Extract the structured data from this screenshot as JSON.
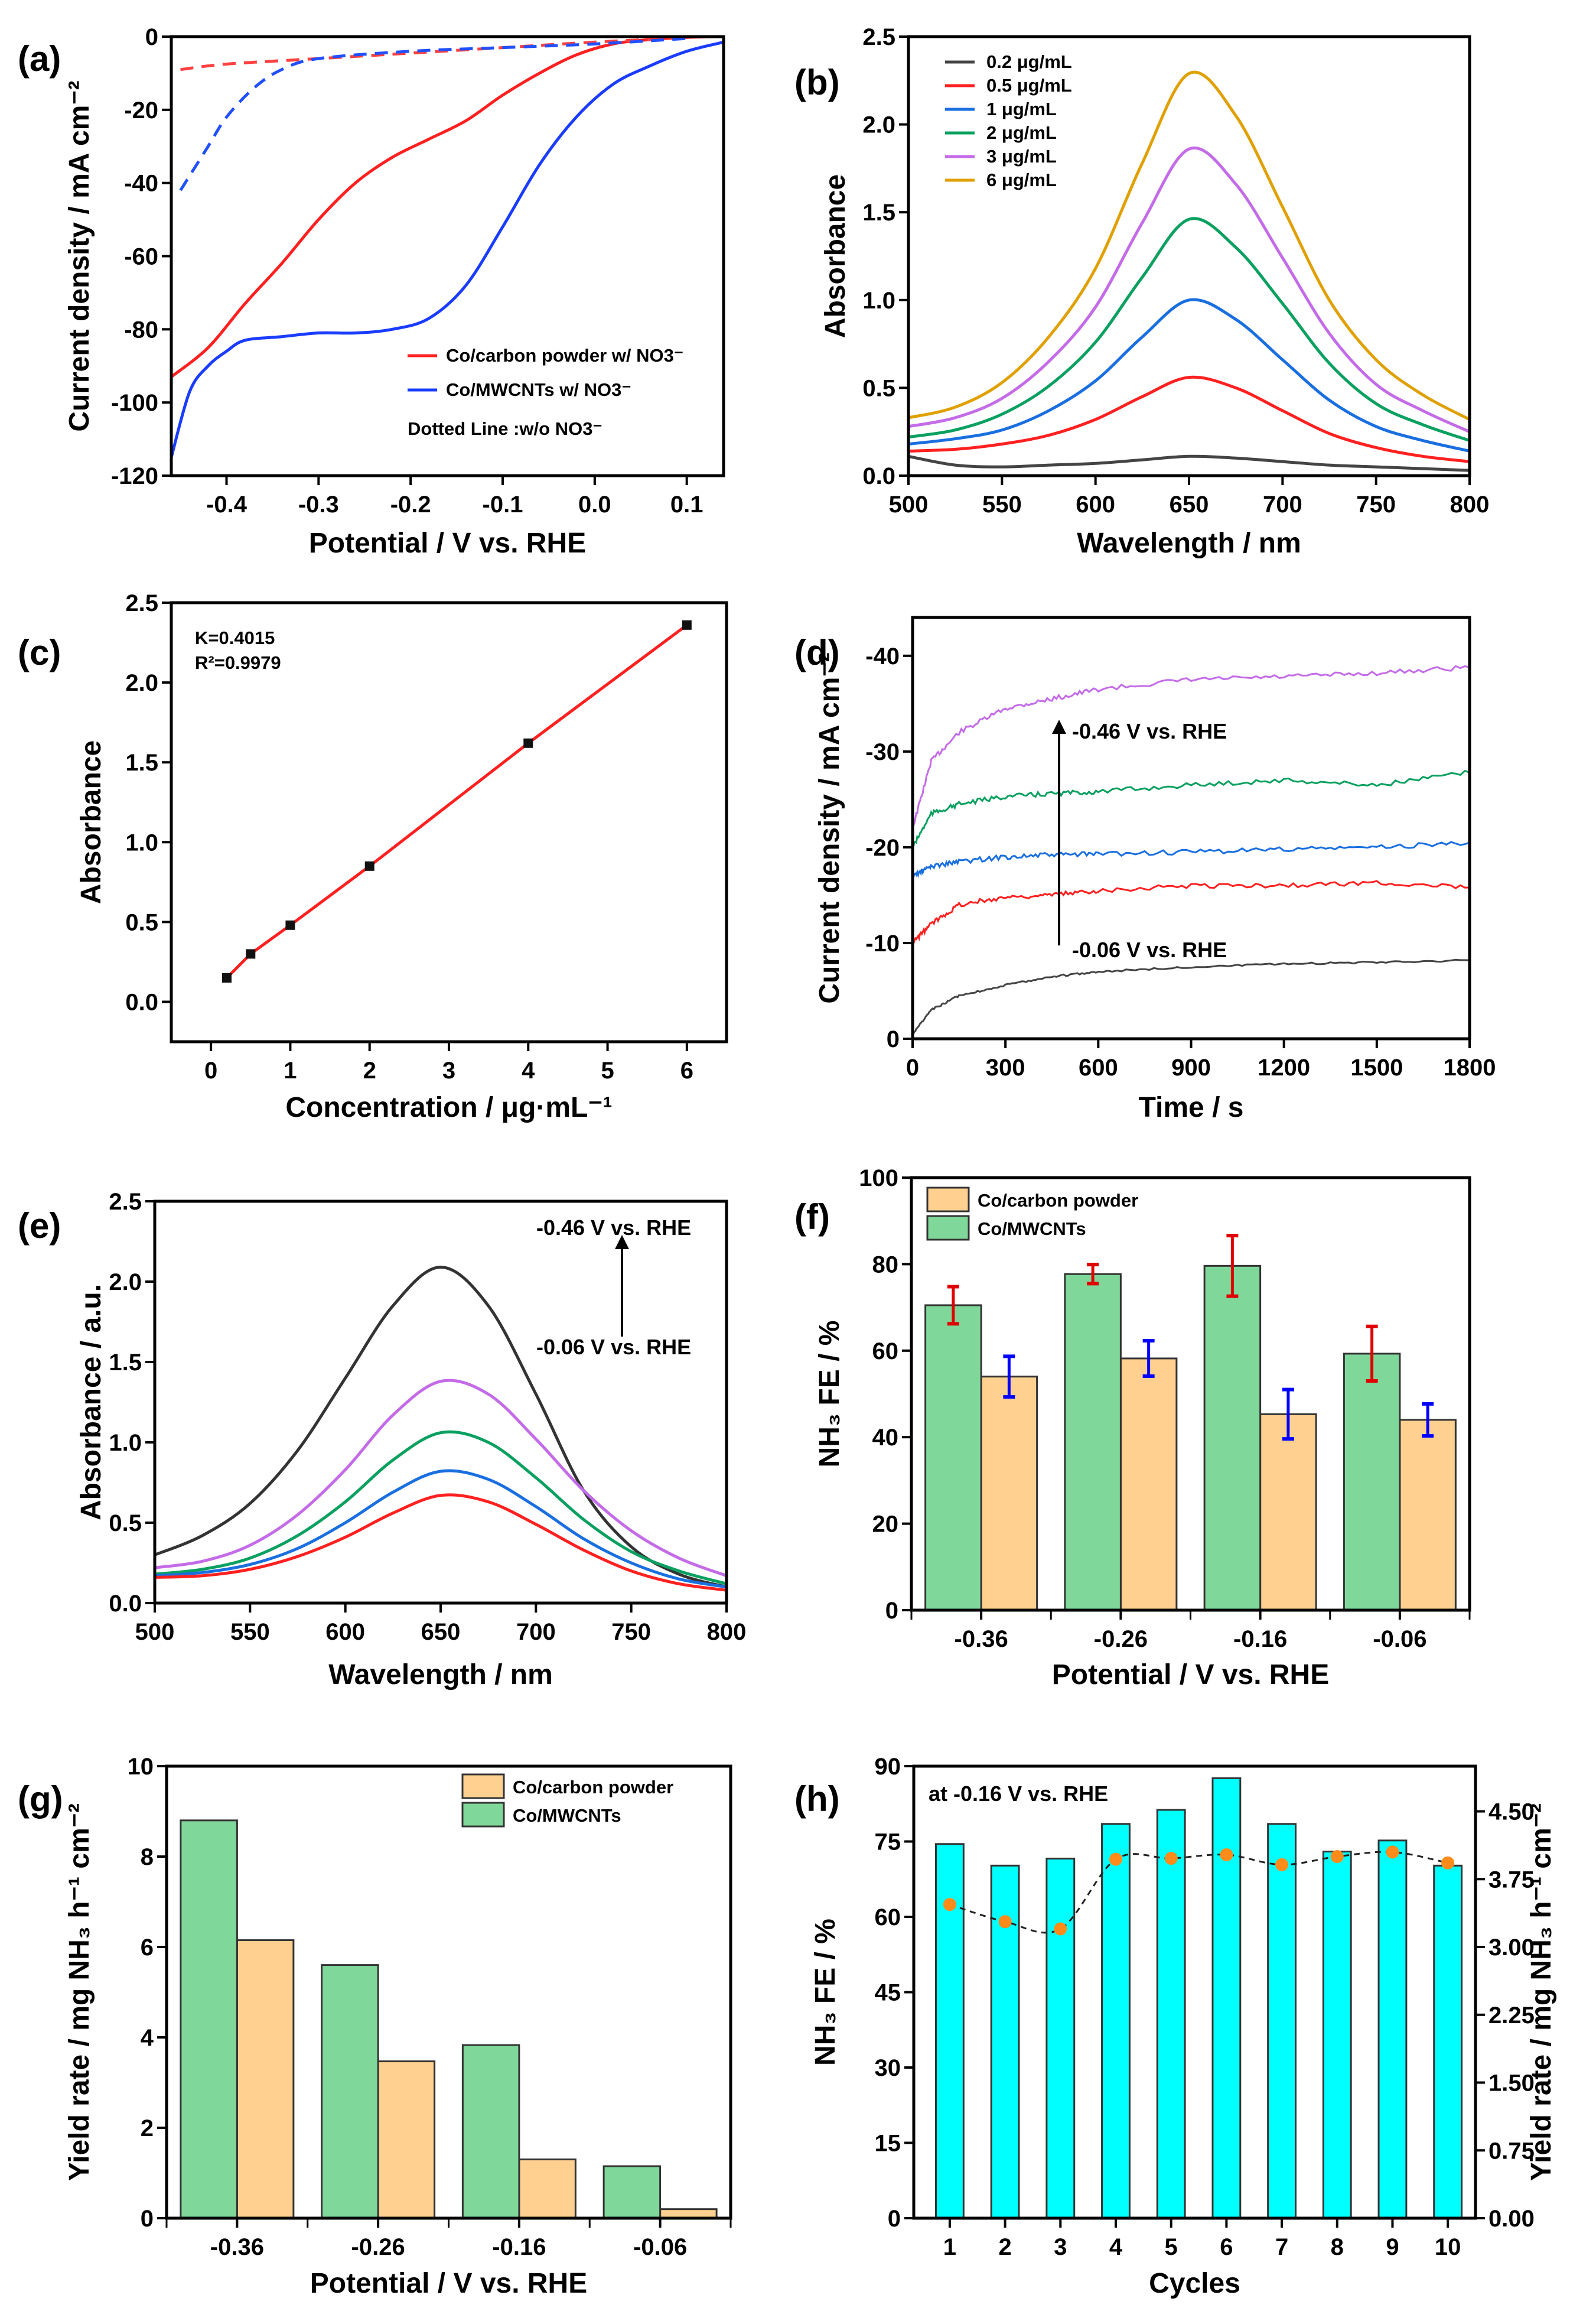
{
  "chart_data": [
    {
      "panel_label": "(a)",
      "type": "line",
      "xlabel": "Potential / V vs. RHE",
      "ylabel": "Current density / mA cm⁻²",
      "xlim": [
        -0.46,
        0.14
      ],
      "ylim": [
        -120,
        0
      ],
      "x_ticks": [
        "-0.4",
        "-0.3",
        "-0.2",
        "-0.1",
        "0.0",
        "0.1"
      ],
      "y_ticks": [
        "-120",
        "-100",
        "-80",
        "-60",
        "-40",
        "-20",
        "0"
      ],
      "series": [
        {
          "name": "Co/carbon powder w/ NO3⁻",
          "color": "#ff2020",
          "dashed": false,
          "points": [
            [
              -0.46,
              -93
            ],
            [
              -0.42,
              -85
            ],
            [
              -0.38,
              -73
            ],
            [
              -0.34,
              -62
            ],
            [
              -0.3,
              -50
            ],
            [
              -0.26,
              -40
            ],
            [
              -0.22,
              -33
            ],
            [
              -0.18,
              -28
            ],
            [
              -0.14,
              -23
            ],
            [
              -0.1,
              -16
            ],
            [
              -0.06,
              -10
            ],
            [
              -0.02,
              -5
            ],
            [
              0.02,
              -2
            ],
            [
              0.06,
              -0.8
            ],
            [
              0.1,
              -0.2
            ],
            [
              0.14,
              0
            ]
          ]
        },
        {
          "name": "Co/MWCNTs w/ NO3⁻",
          "color": "#1a3cff",
          "dashed": false,
          "points": [
            [
              -0.46,
              -115
            ],
            [
              -0.44,
              -97
            ],
            [
              -0.42,
              -90
            ],
            [
              -0.4,
              -86
            ],
            [
              -0.38,
              -83
            ],
            [
              -0.34,
              -82
            ],
            [
              -0.3,
              -81
            ],
            [
              -0.26,
              -81
            ],
            [
              -0.22,
              -80
            ],
            [
              -0.18,
              -77
            ],
            [
              -0.14,
              -68
            ],
            [
              -0.1,
              -52
            ],
            [
              -0.06,
              -35
            ],
            [
              -0.02,
              -22
            ],
            [
              0.02,
              -13
            ],
            [
              0.06,
              -8
            ],
            [
              0.1,
              -4
            ],
            [
              0.14,
              -1.5
            ]
          ]
        },
        {
          "color": "#ff4040",
          "dashed": true,
          "points": [
            [
              -0.45,
              -9
            ],
            [
              -0.4,
              -7.5
            ],
            [
              -0.3,
              -6
            ],
            [
              -0.2,
              -4.5
            ],
            [
              -0.1,
              -3
            ],
            [
              0,
              -1.5
            ],
            [
              0.1,
              -0.3
            ]
          ]
        },
        {
          "color": "#2050ff",
          "dashed": true,
          "points": [
            [
              -0.45,
              -42
            ],
            [
              -0.42,
              -30
            ],
            [
              -0.4,
              -22
            ],
            [
              -0.37,
              -14
            ],
            [
              -0.34,
              -9
            ],
            [
              -0.3,
              -6
            ],
            [
              -0.2,
              -4
            ],
            [
              -0.1,
              -3
            ],
            [
              0,
              -2
            ],
            [
              0.1,
              -0.5
            ]
          ]
        }
      ],
      "legend_note": "Dotted Line :w/o NO3⁻",
      "legend_position": "bottom-right"
    },
    {
      "panel_label": "(b)",
      "type": "line",
      "xlabel": "Wavelength / nm",
      "ylabel": "Absorbance",
      "xlim": [
        500,
        800
      ],
      "ylim": [
        0,
        2.5
      ],
      "x_ticks": [
        "500",
        "550",
        "600",
        "650",
        "700",
        "750",
        "800"
      ],
      "y_ticks": [
        "0.0",
        "0.5",
        "1.0",
        "1.5",
        "2.0",
        "2.5"
      ],
      "x": [
        500,
        525,
        550,
        575,
        600,
        625,
        650,
        675,
        700,
        725,
        750,
        775,
        800
      ],
      "series": [
        {
          "name": "0.2 μg/mL",
          "color": "#444444",
          "values": [
            0.11,
            0.06,
            0.05,
            0.06,
            0.07,
            0.09,
            0.11,
            0.1,
            0.08,
            0.06,
            0.05,
            0.04,
            0.03
          ]
        },
        {
          "name": "0.5 μg/mL",
          "color": "#ff2020",
          "values": [
            0.14,
            0.15,
            0.18,
            0.23,
            0.32,
            0.45,
            0.56,
            0.5,
            0.37,
            0.24,
            0.16,
            0.11,
            0.08
          ]
        },
        {
          "name": "1 μg/mL",
          "color": "#1a6fe0",
          "values": [
            0.18,
            0.21,
            0.26,
            0.37,
            0.54,
            0.79,
            1.0,
            0.89,
            0.66,
            0.43,
            0.28,
            0.2,
            0.14
          ]
        },
        {
          "name": "2 μg/mL",
          "color": "#0aa060",
          "values": [
            0.22,
            0.26,
            0.35,
            0.51,
            0.76,
            1.13,
            1.46,
            1.3,
            0.98,
            0.64,
            0.41,
            0.29,
            0.2
          ]
        },
        {
          "name": "3 μg/mL",
          "color": "#c46be8",
          "values": [
            0.28,
            0.33,
            0.44,
            0.65,
            0.96,
            1.44,
            1.86,
            1.66,
            1.24,
            0.81,
            0.52,
            0.37,
            0.25
          ]
        },
        {
          "name": "6 μg/mL",
          "color": "#e0a000",
          "values": [
            0.33,
            0.39,
            0.53,
            0.79,
            1.18,
            1.78,
            2.29,
            2.05,
            1.53,
            1.0,
            0.66,
            0.46,
            0.32
          ]
        }
      ],
      "legend_position": "top-left"
    },
    {
      "panel_label": "(c)",
      "type": "scatter",
      "xlabel": "Concentration / μg·mL⁻¹",
      "ylabel": "Absorbance",
      "xlim": [
        -0.5,
        6.5
      ],
      "ylim": [
        -0.25,
        2.5
      ],
      "x_ticks": [
        "0",
        "1",
        "2",
        "3",
        "4",
        "5",
        "6"
      ],
      "y_ticks": [
        "0.0",
        "0.5",
        "1.0",
        "1.5",
        "2.0",
        "2.5"
      ],
      "points": [
        [
          0.2,
          0.15
        ],
        [
          0.5,
          0.3
        ],
        [
          1,
          0.48
        ],
        [
          2,
          0.85
        ],
        [
          4,
          1.62
        ],
        [
          6,
          2.36
        ]
      ],
      "fit_color": "#ff2020",
      "annotations": [
        "K=0.4015",
        "R²=0.9979"
      ]
    },
    {
      "panel_label": "(d)",
      "type": "line",
      "xlabel": "Time / s",
      "ylabel": "Current density / mA cm⁻²",
      "xlim": [
        0,
        1800
      ],
      "ylim": [
        0,
        -44
      ],
      "x_ticks": [
        "0",
        "300",
        "600",
        "900",
        "1200",
        "1500",
        "1800"
      ],
      "y_ticks": [
        "0",
        "-10",
        "-20",
        "-30",
        "-40"
      ],
      "x": [
        0,
        60,
        150,
        300,
        450,
        600,
        900,
        1200,
        1500,
        1800
      ],
      "series": [
        {
          "color": "#c46be8",
          "values": [
            -22,
            -29,
            -32,
            -34.5,
            -35.5,
            -36.5,
            -37.5,
            -37.8,
            -38.2,
            -38.8
          ]
        },
        {
          "color": "#0aa060",
          "values": [
            -20,
            -23.5,
            -24.5,
            -25.3,
            -25.6,
            -25.8,
            -26.5,
            -27,
            -26.5,
            -27.8
          ]
        },
        {
          "color": "#1a6fe0",
          "values": [
            -17,
            -18,
            -18.5,
            -19,
            -19.2,
            -19.3,
            -19.5,
            -19.8,
            -20,
            -20.5
          ]
        },
        {
          "color": "#ff2020",
          "values": [
            -10,
            -12,
            -14,
            -14.8,
            -15,
            -15.5,
            -16,
            -16,
            -16.3,
            -15.8
          ]
        },
        {
          "color": "#444444",
          "values": [
            -0.5,
            -3,
            -4.5,
            -5.6,
            -6.5,
            -7,
            -7.5,
            -7.8,
            -8,
            -8.2
          ]
        }
      ],
      "annotations": [
        "-0.46 V vs. RHE",
        "-0.06 V vs. RHE"
      ]
    },
    {
      "panel_label": "(e)",
      "type": "line",
      "xlabel": "Wavelength / nm",
      "ylabel": "Absorbance / a.u.",
      "xlim": [
        500,
        800
      ],
      "ylim": [
        0,
        2.5
      ],
      "x_ticks": [
        "500",
        "550",
        "600",
        "650",
        "700",
        "750",
        "800"
      ],
      "y_ticks": [
        "0.0",
        "0.5",
        "1.0",
        "1.5",
        "2.0",
        "2.5"
      ],
      "x": [
        500,
        525,
        550,
        575,
        600,
        625,
        650,
        675,
        700,
        725,
        750,
        775,
        800
      ],
      "series": [
        {
          "color": "#333333",
          "values": [
            0.3,
            0.42,
            0.62,
            0.95,
            1.4,
            1.85,
            2.09,
            1.85,
            1.3,
            0.7,
            0.35,
            0.18,
            0.1
          ]
        },
        {
          "color": "#c46be8",
          "values": [
            0.22,
            0.26,
            0.36,
            0.55,
            0.83,
            1.17,
            1.38,
            1.3,
            1.02,
            0.7,
            0.45,
            0.28,
            0.17
          ]
        },
        {
          "color": "#0aa060",
          "values": [
            0.18,
            0.21,
            0.28,
            0.42,
            0.63,
            0.89,
            1.06,
            1.0,
            0.78,
            0.52,
            0.32,
            0.2,
            0.12
          ]
        },
        {
          "color": "#1a6fe0",
          "values": [
            0.17,
            0.19,
            0.24,
            0.34,
            0.5,
            0.69,
            0.82,
            0.77,
            0.6,
            0.4,
            0.25,
            0.15,
            0.1
          ]
        },
        {
          "color": "#ff2020",
          "values": [
            0.16,
            0.17,
            0.21,
            0.29,
            0.41,
            0.56,
            0.67,
            0.63,
            0.49,
            0.33,
            0.2,
            0.12,
            0.08
          ]
        }
      ],
      "annotations": [
        "-0.46 V vs. RHE",
        "-0.06 V vs. RHE"
      ]
    },
    {
      "panel_label": "(f)",
      "type": "bar",
      "xlabel": "Potential / V vs. RHE",
      "ylabel": "NH₃ FE / %",
      "ylim": [
        0,
        100
      ],
      "y_ticks": [
        "0",
        "20",
        "40",
        "60",
        "80",
        "100"
      ],
      "categories": [
        "-0.36",
        "-0.26",
        "-0.16",
        "-0.06"
      ],
      "series": [
        {
          "name": "Co/carbon powder",
          "color": "#ffd08f",
          "values": [
            54,
            58.2,
            45.3,
            44
          ],
          "errors": [
            4.7,
            4.1,
            5.7,
            3.7
          ],
          "error_color": "#0000ff"
        },
        {
          "name": "Co/MWCNTs",
          "color": "#7fd89a",
          "values": [
            70.5,
            77.7,
            79.6,
            59.3
          ],
          "errors": [
            4.3,
            2.2,
            7,
            6.3
          ],
          "error_color": "#e00000"
        }
      ],
      "legend_position": "top-left"
    },
    {
      "panel_label": "(g)",
      "type": "bar",
      "xlabel": "Potential / V vs. RHE",
      "ylabel": "Yield rate / mg NH₃ h⁻¹ cm⁻²",
      "ylim": [
        0,
        10
      ],
      "y_ticks": [
        "0",
        "2",
        "4",
        "6",
        "8",
        "10"
      ],
      "categories": [
        "-0.36",
        "-0.26",
        "-0.16",
        "-0.06"
      ],
      "series": [
        {
          "name": "Co/carbon powder",
          "color": "#ffd08f",
          "values": [
            6.15,
            3.47,
            1.3,
            0.2
          ]
        },
        {
          "name": "Co/MWCNTs",
          "color": "#7fd89a",
          "values": [
            8.8,
            5.6,
            3.83,
            1.15
          ]
        }
      ],
      "legend_position": "top-right"
    },
    {
      "panel_label": "(h)",
      "type": "bar+line",
      "xlabel": "Cycles",
      "ylabel": "NH₃ FE / %",
      "y2label": "Yield rate / mg NH₃ h⁻¹ cm⁻²",
      "xlim": [
        0.35,
        10.5
      ],
      "ylim": [
        0,
        90
      ],
      "y2lim": [
        0,
        5
      ],
      "x_ticks": [
        "1",
        "2",
        "3",
        "4",
        "5",
        "6",
        "7",
        "8",
        "9",
        "10"
      ],
      "y_ticks": [
        "0",
        "15",
        "30",
        "45",
        "60",
        "75",
        "90"
      ],
      "y2_ticks": [
        "0.00",
        "0.75",
        "1.50",
        "2.25",
        "3.00",
        "3.75",
        "4.50"
      ],
      "bars": {
        "color": "#00ffff",
        "values": [
          74.5,
          70.2,
          71.6,
          78.5,
          81.3,
          87.6,
          78.5,
          73,
          75.2,
          70.2
        ]
      },
      "line": {
        "color": "#ff8c1a",
        "axis": "right",
        "values": [
          3.47,
          3.28,
          3.2,
          3.97,
          3.98,
          4.02,
          3.91,
          4.0,
          4.05,
          3.93
        ]
      },
      "annotations": [
        "at -0.16 V vs. RHE"
      ]
    }
  ]
}
